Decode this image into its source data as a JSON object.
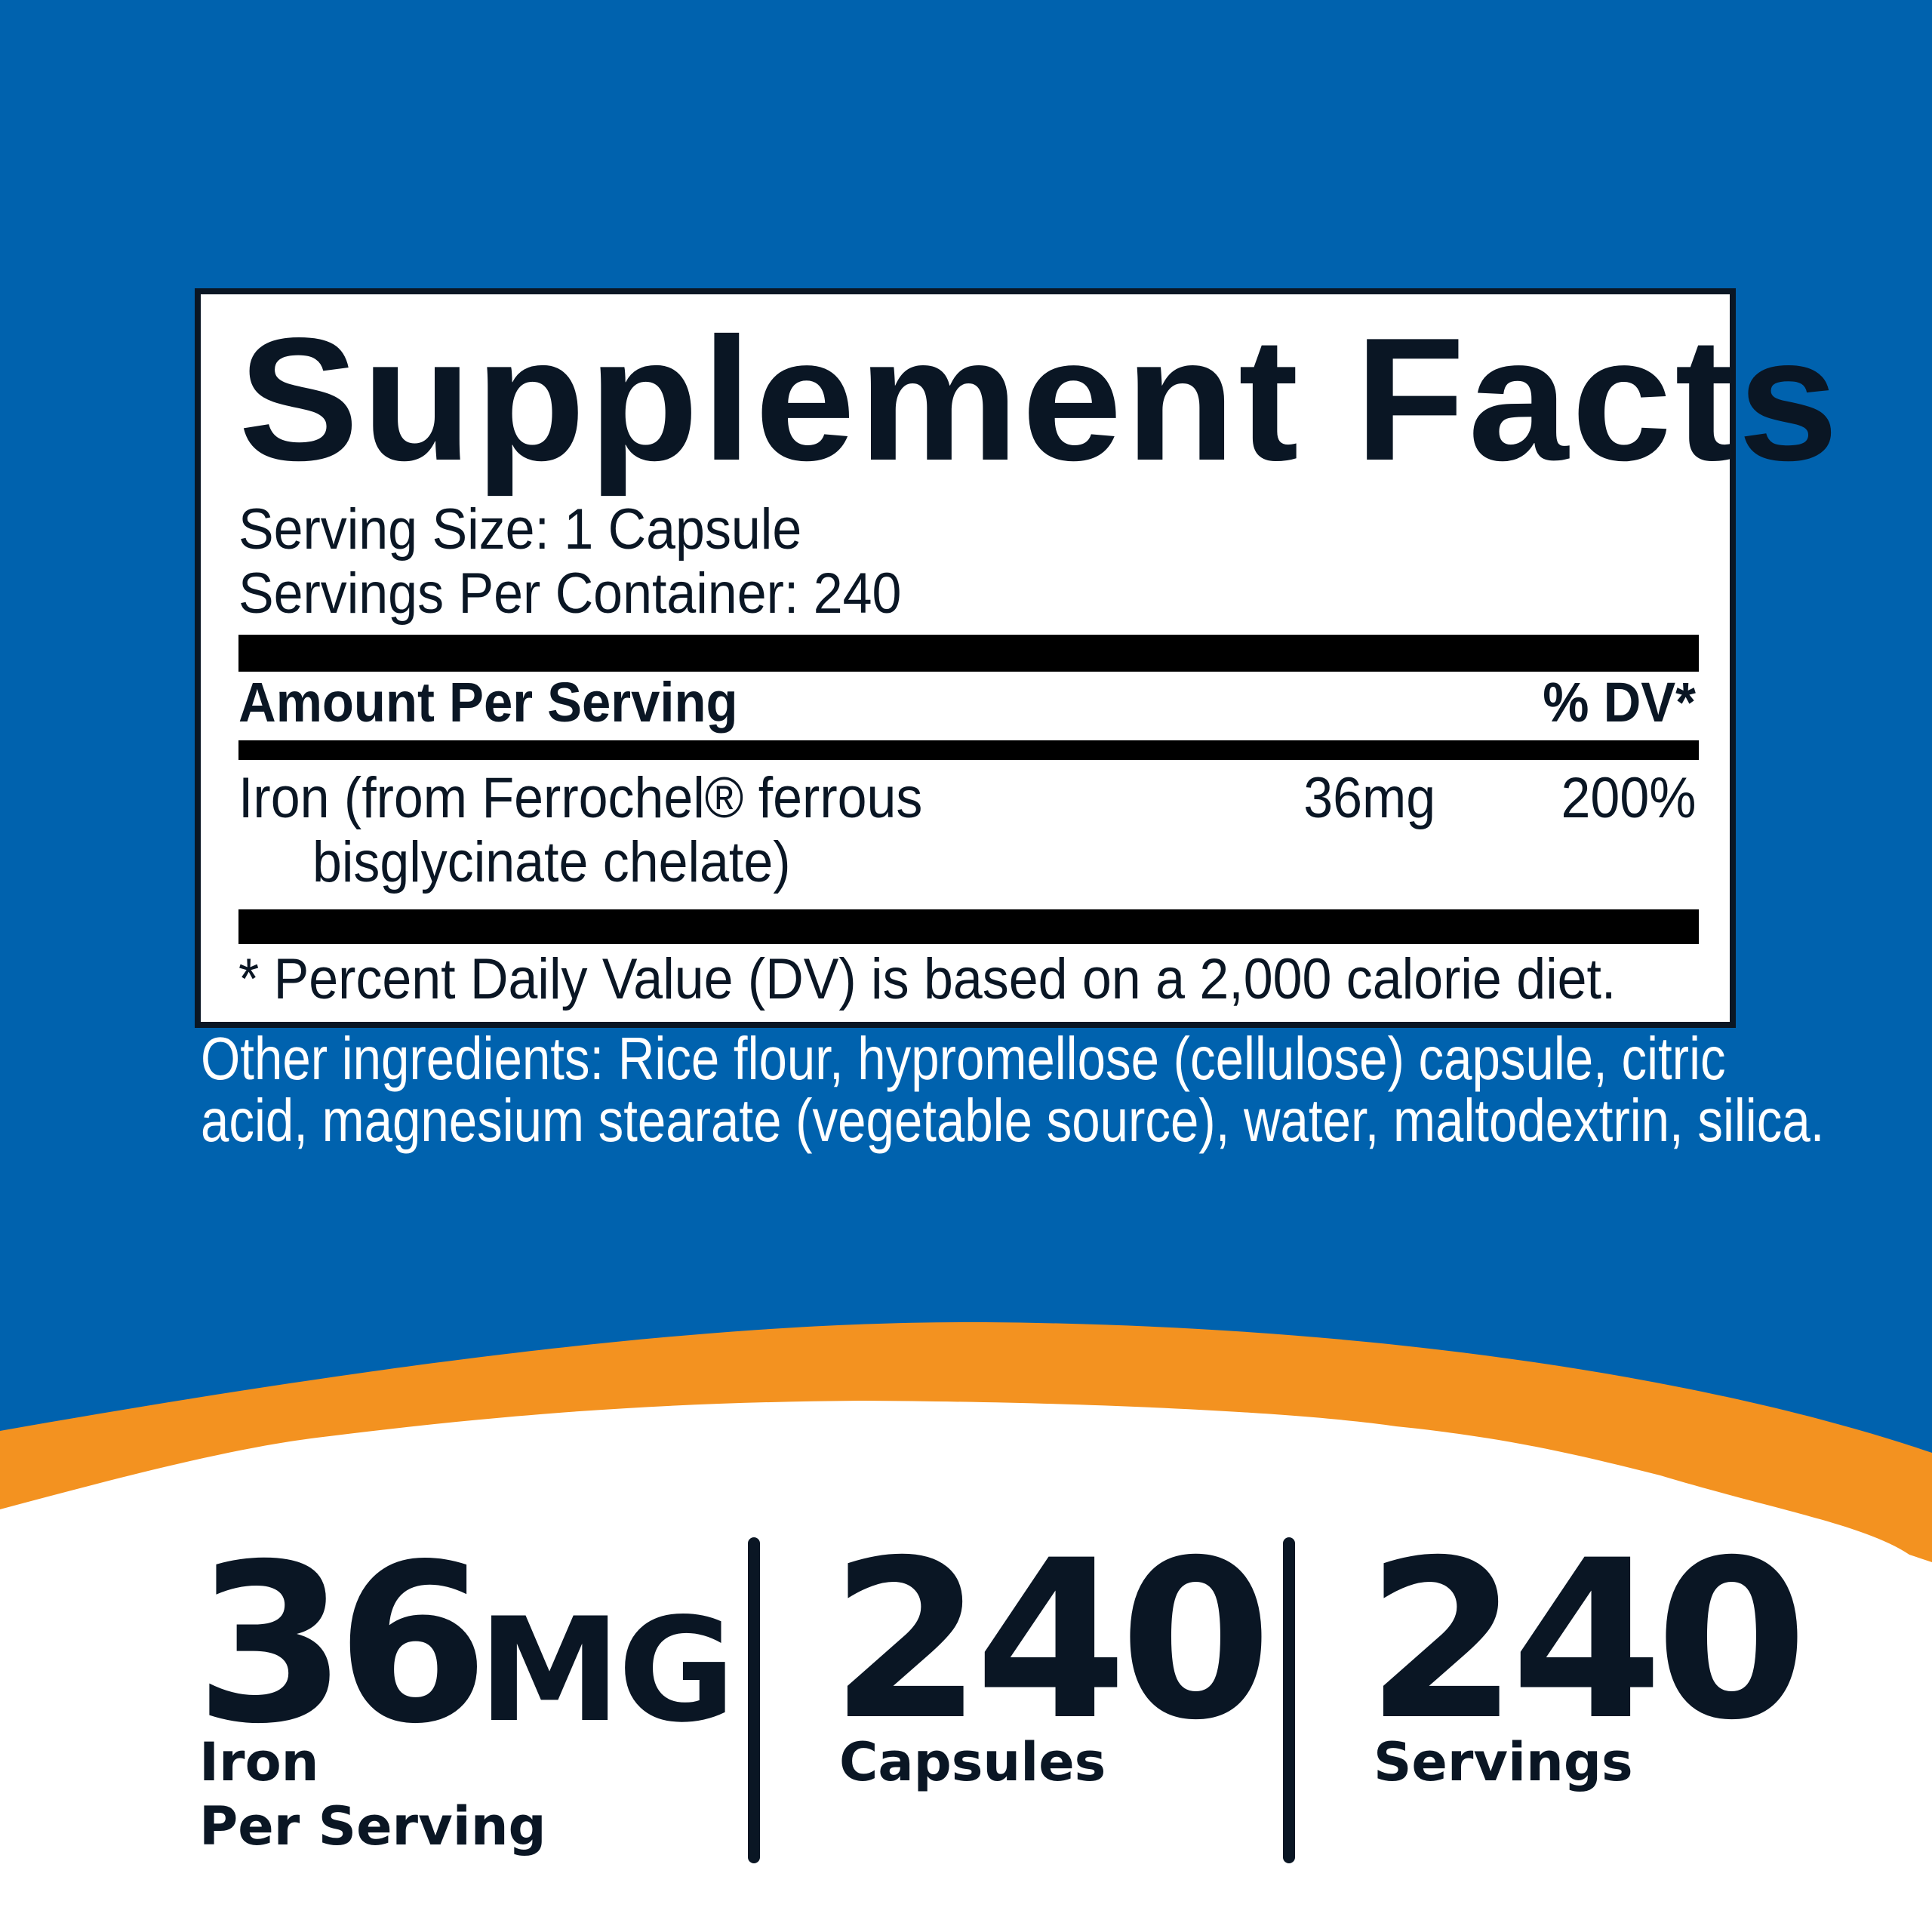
{
  "colors": {
    "background_blue": "#0062ae",
    "swoosh_orange": "#f39220",
    "text_dark": "#0a1624",
    "bottom_white": "#ffffff"
  },
  "facts": {
    "title": "Supplement Facts",
    "serving_size": "Serving Size: 1 Capsule",
    "servings_per_container": "Servings Per Container: 240",
    "header_amount": "Amount Per Serving",
    "header_dv": "% DV*",
    "rows": [
      {
        "name_line1": "Iron (from Ferrochel® ferrous",
        "name_line2": "bisglycinate chelate)",
        "amount": "36mg",
        "dv": "200%"
      }
    ],
    "footnote": "* Percent Daily Value (DV) is based on a 2,000 calorie diet."
  },
  "other_ingredients": {
    "line1": "Other ingredients:  Rice flour, hypromellose (cellulose) capsule, citric",
    "line2": "acid, magnesium stearate (vegetable source), water, maltodextrin, silica."
  },
  "stats": [
    {
      "value": "36",
      "unit": "MG",
      "label_line1": "Iron",
      "label_line2": "Per Serving"
    },
    {
      "value": "240",
      "label_line1": "Capsules"
    },
    {
      "value": "240",
      "label_line1": "Servings"
    }
  ]
}
